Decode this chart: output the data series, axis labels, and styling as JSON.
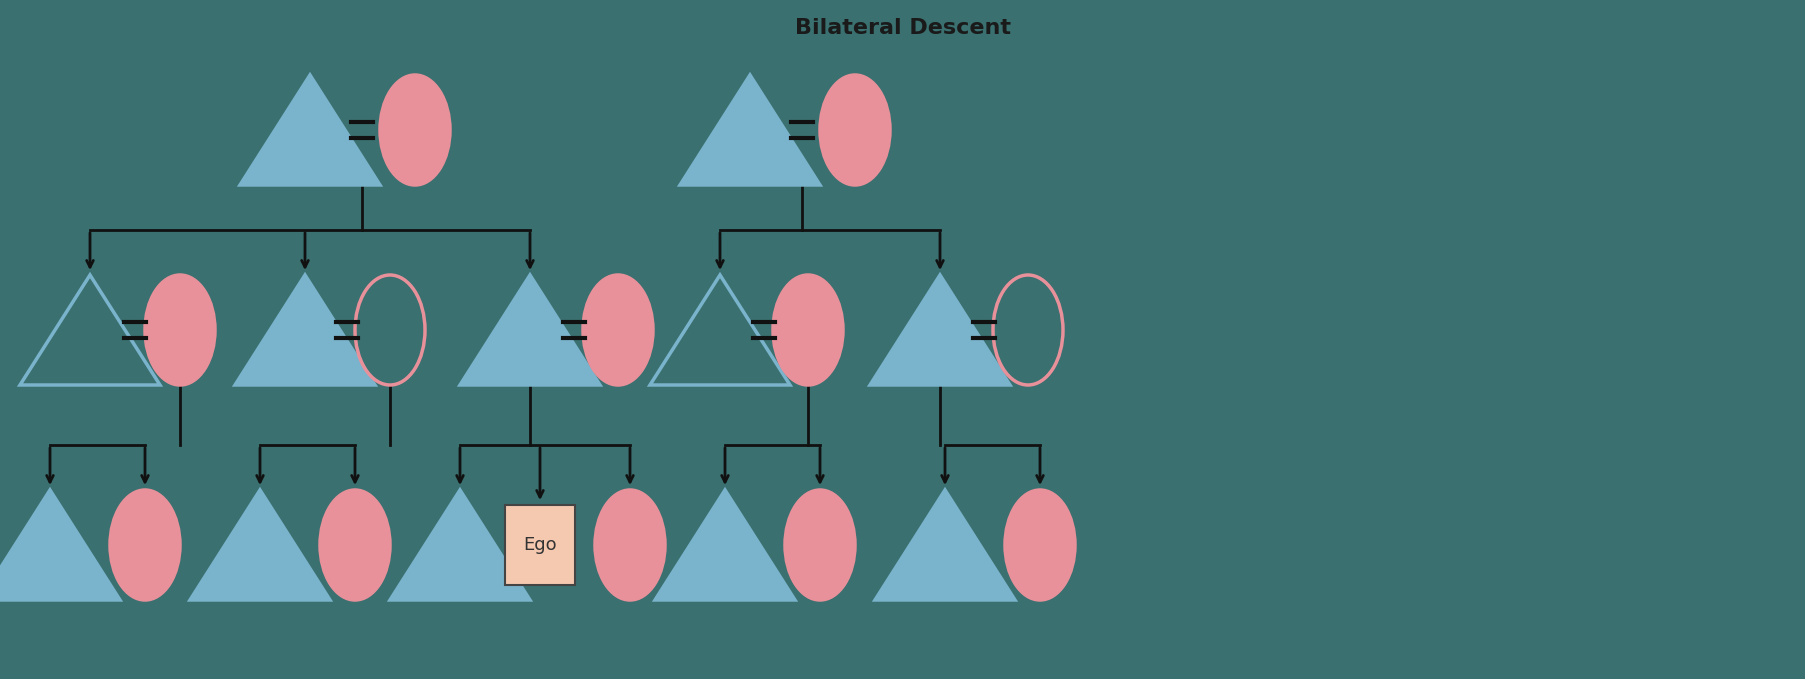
{
  "title": "Bilateral Descent",
  "bg_color": "#3a7070",
  "male_color": "#7ab3cc",
  "female_fill_color": "#e8919a",
  "ego_bg": "#f5c9b0",
  "line_color": "#111111",
  "title_color": "#1a1a1a",
  "unfilled_outline": "#e8919a",
  "fig_w": 18.06,
  "fig_h": 6.79,
  "dpi": 100
}
